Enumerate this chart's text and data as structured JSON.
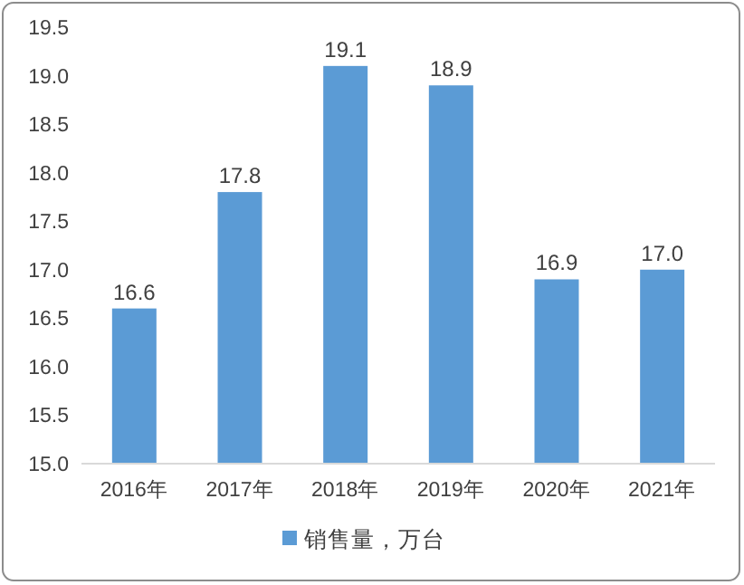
{
  "chart_data": {
    "type": "bar",
    "categories": [
      "2016年",
      "2017年",
      "2018年",
      "2019年",
      "2020年",
      "2021年"
    ],
    "series": [
      {
        "name": "销售量，万台",
        "color": "#5b9bd5",
        "values": [
          16.6,
          17.8,
          19.1,
          18.9,
          16.9,
          17.0
        ],
        "value_labels": [
          "16.6",
          "17.8",
          "19.1",
          "18.9",
          "16.9",
          "17.0"
        ]
      }
    ],
    "ylim": [
      15,
      19.5
    ],
    "yticks": [
      {
        "value": 15,
        "label": "15.0"
      },
      {
        "value": 15.5,
        "label": "15.5"
      },
      {
        "value": 16,
        "label": "16.0"
      },
      {
        "value": 16.5,
        "label": "16.5"
      },
      {
        "value": 17,
        "label": "17.0"
      },
      {
        "value": 17.5,
        "label": "17.5"
      },
      {
        "value": 18,
        "label": "18.0"
      },
      {
        "value": 18.5,
        "label": "18.5"
      },
      {
        "value": 19,
        "label": "19.0"
      },
      {
        "value": 19.5,
        "label": "19.5"
      }
    ],
    "legend": "bottom"
  }
}
